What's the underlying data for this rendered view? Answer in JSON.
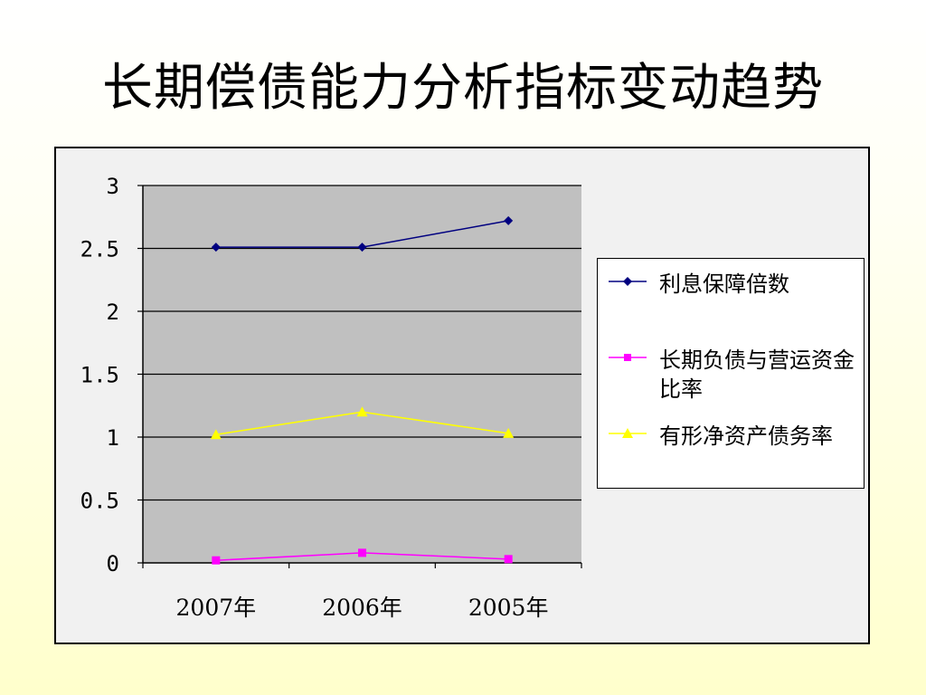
{
  "title": "长期偿债能力分析指标变动趋势",
  "chart_data": {
    "type": "line",
    "categories": [
      "2007年",
      "2006年",
      "2005年"
    ],
    "ylim": [
      0,
      3
    ],
    "yticks": [
      "0",
      "0.5",
      "1",
      "1.5",
      "2",
      "2.5",
      "3"
    ],
    "grid": true,
    "legend_position": "right",
    "plot_background": "#c0c0c0",
    "series": [
      {
        "name": "利息保障倍数",
        "values": [
          2.51,
          2.51,
          2.72
        ],
        "color": "#000080",
        "marker": "diamond"
      },
      {
        "name": "长期负债与营运资金比率",
        "values": [
          0.02,
          0.08,
          0.03
        ],
        "color": "#ff00ff",
        "marker": "square"
      },
      {
        "name": "有形净资产债务率",
        "values": [
          1.02,
          1.2,
          1.03
        ],
        "color": "#ffff00",
        "marker": "triangle"
      }
    ]
  }
}
